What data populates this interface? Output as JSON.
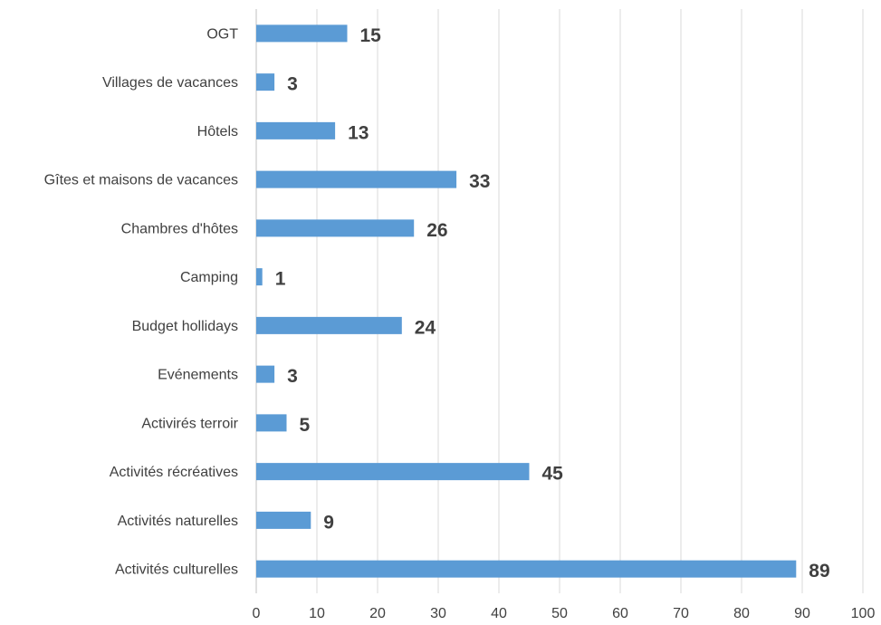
{
  "chart_data": {
    "type": "bar",
    "orientation": "horizontal",
    "categories": [
      "OGT",
      "Villages de vacances",
      "Hôtels",
      "Gîtes et maisons de vacances",
      "Chambres d'hôtes",
      "Camping",
      "Budget hollidays",
      "Evénements",
      "Activirés terroir",
      "Activités récréatives",
      "Activités naturelles",
      "Activités culturelles"
    ],
    "values": [
      15,
      3,
      13,
      33,
      26,
      1,
      24,
      3,
      5,
      45,
      9,
      89
    ],
    "xlim": [
      0,
      100
    ],
    "xticks": [
      0,
      10,
      20,
      30,
      40,
      50,
      60,
      70,
      80,
      90,
      100
    ],
    "grid": "vertical",
    "legend": "none",
    "colors": {
      "bar": "#5b9bd5"
    }
  }
}
